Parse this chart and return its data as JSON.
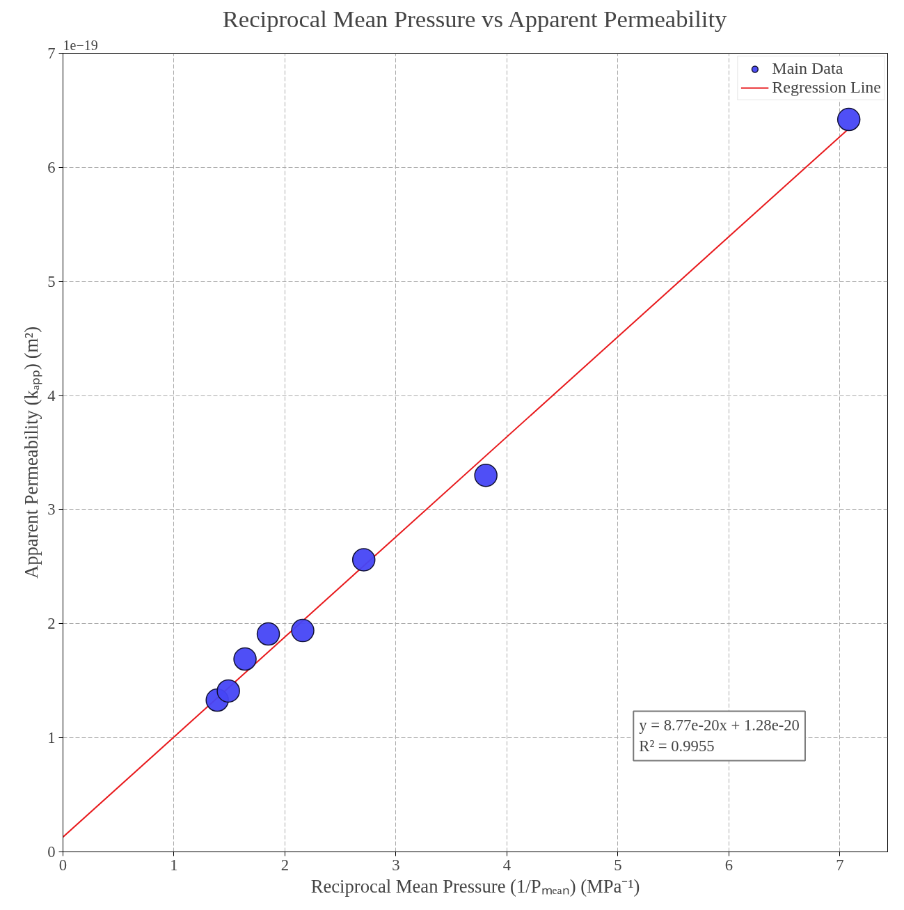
{
  "chart_data": {
    "type": "scatter",
    "title": "Reciprocal Mean Pressure vs Apparent Permeability",
    "xlabel": "Reciprocal Mean Pressure (1/Pₘₑₐₙ) (MPa⁻¹)",
    "ylabel": "Apparent Permeability (kₐₚₚ) (m²)",
    "annotations": [
      "1e−19",
      "y = 8.77e-20x + 1.28e-20",
      "R² = 0.9955"
    ],
    "series": [
      {
        "name": "Main Data",
        "marker": "circle",
        "color": "#4646f5",
        "x": [
          1.39,
          1.49,
          1.64,
          1.85,
          2.16,
          2.71,
          3.81,
          7.08
        ],
        "values": [
          1.33,
          1.41,
          1.69,
          1.91,
          1.94,
          2.56,
          3.3,
          6.42
        ]
      },
      {
        "name": "Regression Line",
        "type": "line",
        "color": "#e8191c",
        "x": [
          0,
          7.08
        ],
        "values": [
          0.13,
          6.34
        ]
      }
    ],
    "xlim": [
      0,
      7.43
    ],
    "ylim": [
      0,
      7
    ],
    "xticks": [
      0,
      1,
      2,
      3,
      4,
      5,
      6,
      7
    ],
    "yticks": [
      0,
      1,
      2,
      3,
      4,
      5,
      6,
      7
    ],
    "grid": true,
    "legend": "top right",
    "line_style": "solid"
  }
}
